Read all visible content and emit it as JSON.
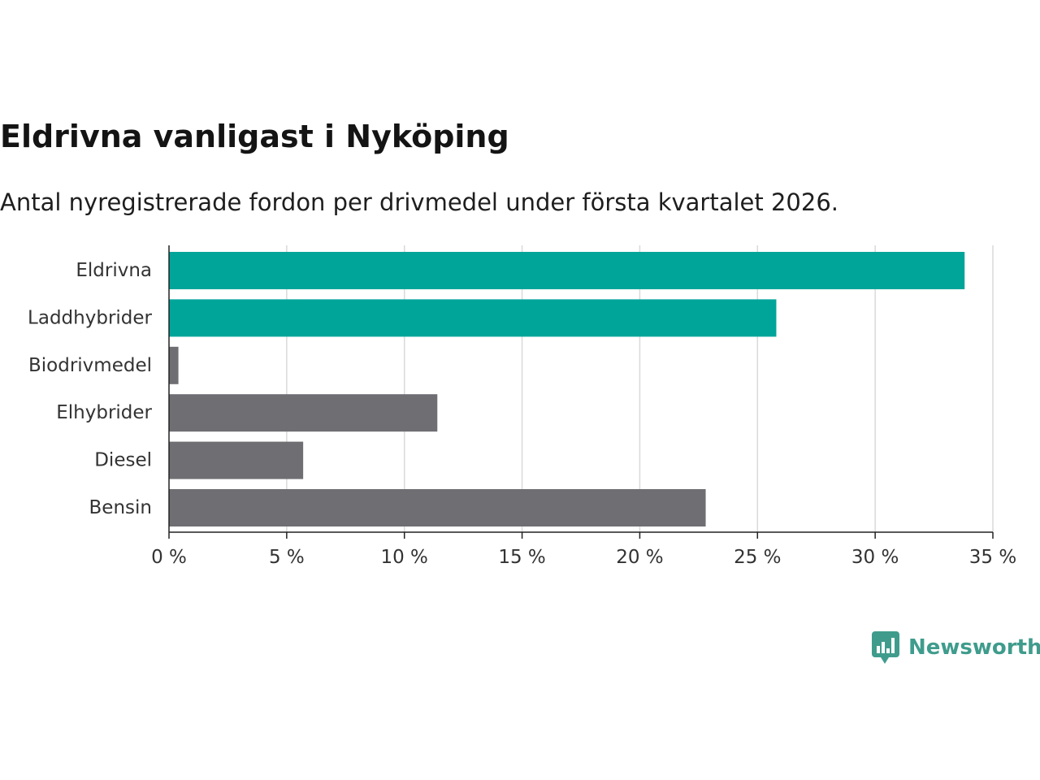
{
  "title": "Eldrivna vanligast i Nyköping",
  "subtitle": "Antal nyregistrerade fordon per drivmedel under första kvartalet 2026.",
  "brand": {
    "name": "Newsworthy",
    "icon": "newsworthy-logo-icon"
  },
  "colors": {
    "highlight": "#00a59a",
    "default": "#6e6e73",
    "grid": "#d9d9d9",
    "axis": "#222222",
    "brand": "#3f9c8c"
  },
  "chart_data": {
    "type": "bar",
    "orientation": "horizontal",
    "title": "Eldrivna vanligast i Nyköping",
    "subtitle": "Antal nyregistrerade fordon per drivmedel under första kvartalet 2026.",
    "xlabel": "",
    "ylabel": "",
    "categories": [
      "Eldrivna",
      "Laddhybrider",
      "Biodrivmedel",
      "Elhybrider",
      "Diesel",
      "Bensin"
    ],
    "values": [
      33.8,
      25.8,
      0.4,
      11.4,
      5.7,
      22.8
    ],
    "highlighted": [
      true,
      true,
      false,
      false,
      false,
      false
    ],
    "xlim": [
      0,
      35
    ],
    "ticks": [
      0,
      5,
      10,
      15,
      20,
      25,
      30,
      35
    ],
    "tick_labels": [
      "0 %",
      "5 %",
      "10 %",
      "15 %",
      "20 %",
      "25 %",
      "30 %",
      "35 %"
    ],
    "grid": true,
    "unit": "%"
  }
}
